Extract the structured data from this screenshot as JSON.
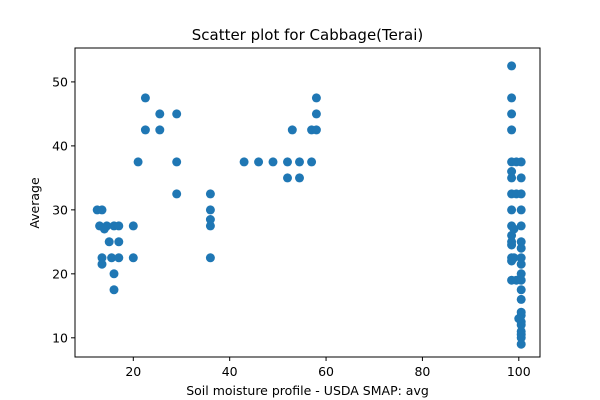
{
  "chart_data": {
    "type": "scatter",
    "title": "Scatter plot for Cabbage(Terai)",
    "xlabel": "Soil moisture profile - USDA SMAP: avg",
    "ylabel": "Average",
    "xlim": [
      7.9,
      104.4
    ],
    "ylim": [
      7.0,
      55.3
    ],
    "xticks": [
      20,
      40,
      60,
      80,
      100
    ],
    "yticks": [
      10,
      20,
      30,
      40,
      50
    ],
    "grid": false,
    "marker_color": "#1f77b4",
    "points": [
      [
        12.5,
        30.0
      ],
      [
        13.5,
        30.0
      ],
      [
        13.0,
        27.5
      ],
      [
        14.5,
        27.5
      ],
      [
        14.0,
        27.0
      ],
      [
        16.0,
        27.5
      ],
      [
        17.0,
        27.5
      ],
      [
        13.5,
        22.5
      ],
      [
        13.5,
        21.5
      ],
      [
        15.0,
        25.0
      ],
      [
        15.5,
        22.5
      ],
      [
        17.0,
        25.0
      ],
      [
        17.0,
        22.5
      ],
      [
        16.0,
        20.0
      ],
      [
        16.0,
        17.5
      ],
      [
        20.0,
        27.5
      ],
      [
        20.0,
        22.5
      ],
      [
        21.0,
        37.5
      ],
      [
        22.5,
        47.5
      ],
      [
        22.5,
        42.5
      ],
      [
        25.5,
        45.0
      ],
      [
        25.5,
        42.5
      ],
      [
        29.0,
        45.0
      ],
      [
        29.0,
        37.5
      ],
      [
        29.0,
        32.5
      ],
      [
        36.0,
        32.5
      ],
      [
        36.0,
        30.0
      ],
      [
        36.0,
        28.5
      ],
      [
        36.0,
        27.5
      ],
      [
        36.0,
        22.5
      ],
      [
        43.0,
        37.5
      ],
      [
        46.0,
        37.5
      ],
      [
        49.0,
        37.5
      ],
      [
        52.0,
        37.5
      ],
      [
        52.0,
        35.0
      ],
      [
        53.0,
        42.5
      ],
      [
        54.5,
        37.5
      ],
      [
        54.5,
        35.0
      ],
      [
        57.0,
        37.5
      ],
      [
        57.0,
        42.5
      ],
      [
        58.0,
        47.5
      ],
      [
        58.0,
        45.0
      ],
      [
        58.0,
        42.5
      ],
      [
        98.5,
        52.5
      ],
      [
        98.5,
        47.5
      ],
      [
        98.5,
        45.0
      ],
      [
        98.5,
        42.5
      ],
      [
        98.5,
        37.5
      ],
      [
        98.5,
        36.0
      ],
      [
        98.5,
        35.0
      ],
      [
        98.5,
        32.5
      ],
      [
        98.5,
        30.0
      ],
      [
        98.5,
        27.5
      ],
      [
        98.5,
        26.0
      ],
      [
        98.5,
        25.0
      ],
      [
        98.5,
        24.5
      ],
      [
        98.5,
        22.5
      ],
      [
        98.5,
        22.0
      ],
      [
        98.5,
        19.0
      ],
      [
        99.0,
        27.0
      ],
      [
        99.0,
        22.5
      ],
      [
        99.5,
        37.5
      ],
      [
        99.5,
        32.5
      ],
      [
        99.5,
        19.0
      ],
      [
        100.5,
        37.5
      ],
      [
        100.5,
        35.0
      ],
      [
        100.5,
        32.5
      ],
      [
        100.5,
        30.0
      ],
      [
        100.5,
        27.5
      ],
      [
        100.5,
        25.0
      ],
      [
        100.5,
        24.0
      ],
      [
        100.5,
        22.5
      ],
      [
        100.5,
        21.5
      ],
      [
        100.5,
        20.0
      ],
      [
        100.5,
        19.0
      ],
      [
        100.5,
        17.5
      ],
      [
        100.5,
        16.0
      ],
      [
        100.5,
        14.0
      ],
      [
        100.5,
        13.5
      ],
      [
        100.5,
        12.5
      ],
      [
        100.5,
        12.0
      ],
      [
        100.5,
        11.0
      ],
      [
        100.5,
        10.5
      ],
      [
        100.5,
        10.0
      ],
      [
        100.5,
        9.0
      ],
      [
        100.0,
        13.0
      ]
    ]
  }
}
